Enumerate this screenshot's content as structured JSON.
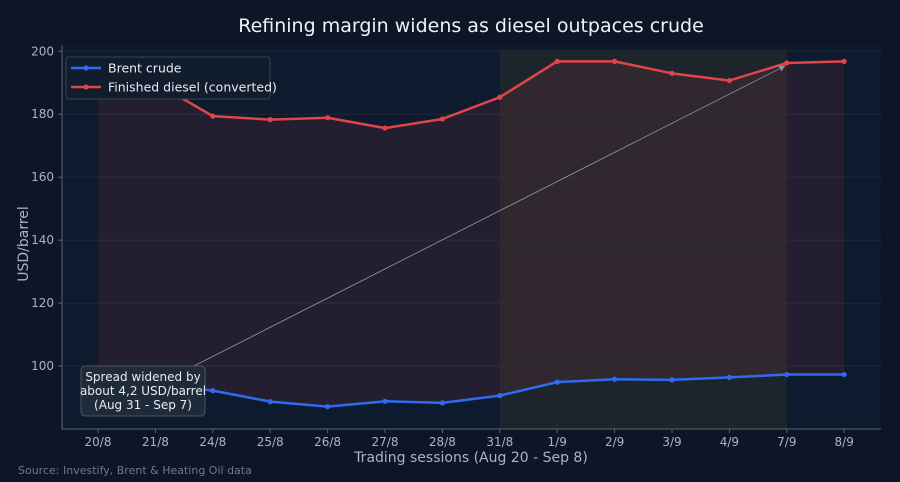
{
  "chart_data": {
    "type": "line",
    "title": "Refining margin widens as diesel outpaces crude",
    "xlabel": "Trading sessions (Aug 20 - Sep 8)",
    "ylabel": "USD/barrel",
    "source": "Source: Investify, Brent & Heating Oil data",
    "categories": [
      "20/8",
      "21/8",
      "24/8",
      "25/8",
      "26/8",
      "27/8",
      "28/8",
      "31/8",
      "1/9",
      "2/9",
      "3/9",
      "4/9",
      "7/9",
      "8/9"
    ],
    "ylim": [
      80,
      202
    ],
    "yticks": [
      100,
      120,
      140,
      160,
      180,
      200
    ],
    "grid": true,
    "legend_position": "top-left",
    "series": [
      {
        "name": "Brent crude",
        "color": "#2f6bef",
        "values": [
          96.0,
          94.5,
          92.2,
          88.7,
          87.1,
          88.8,
          88.3,
          90.6,
          94.9,
          95.8,
          95.6,
          96.4,
          97.3,
          97.3
        ]
      },
      {
        "name": "Finished diesel (converted)",
        "color": "#e0454a",
        "values": [
          193.0,
          190.0,
          179.4,
          178.3,
          178.9,
          175.6,
          178.5,
          185.4,
          196.8,
          196.8,
          193.0,
          190.7,
          196.3,
          196.8
        ]
      }
    ],
    "highlight_range": [
      "31/8",
      "7/9"
    ],
    "annotation": {
      "lines": [
        "Spread widened by",
        "about 4,2 USD/barrel",
        "(Aug 31 - Sep 7)"
      ],
      "points_to": "7/9"
    }
  }
}
